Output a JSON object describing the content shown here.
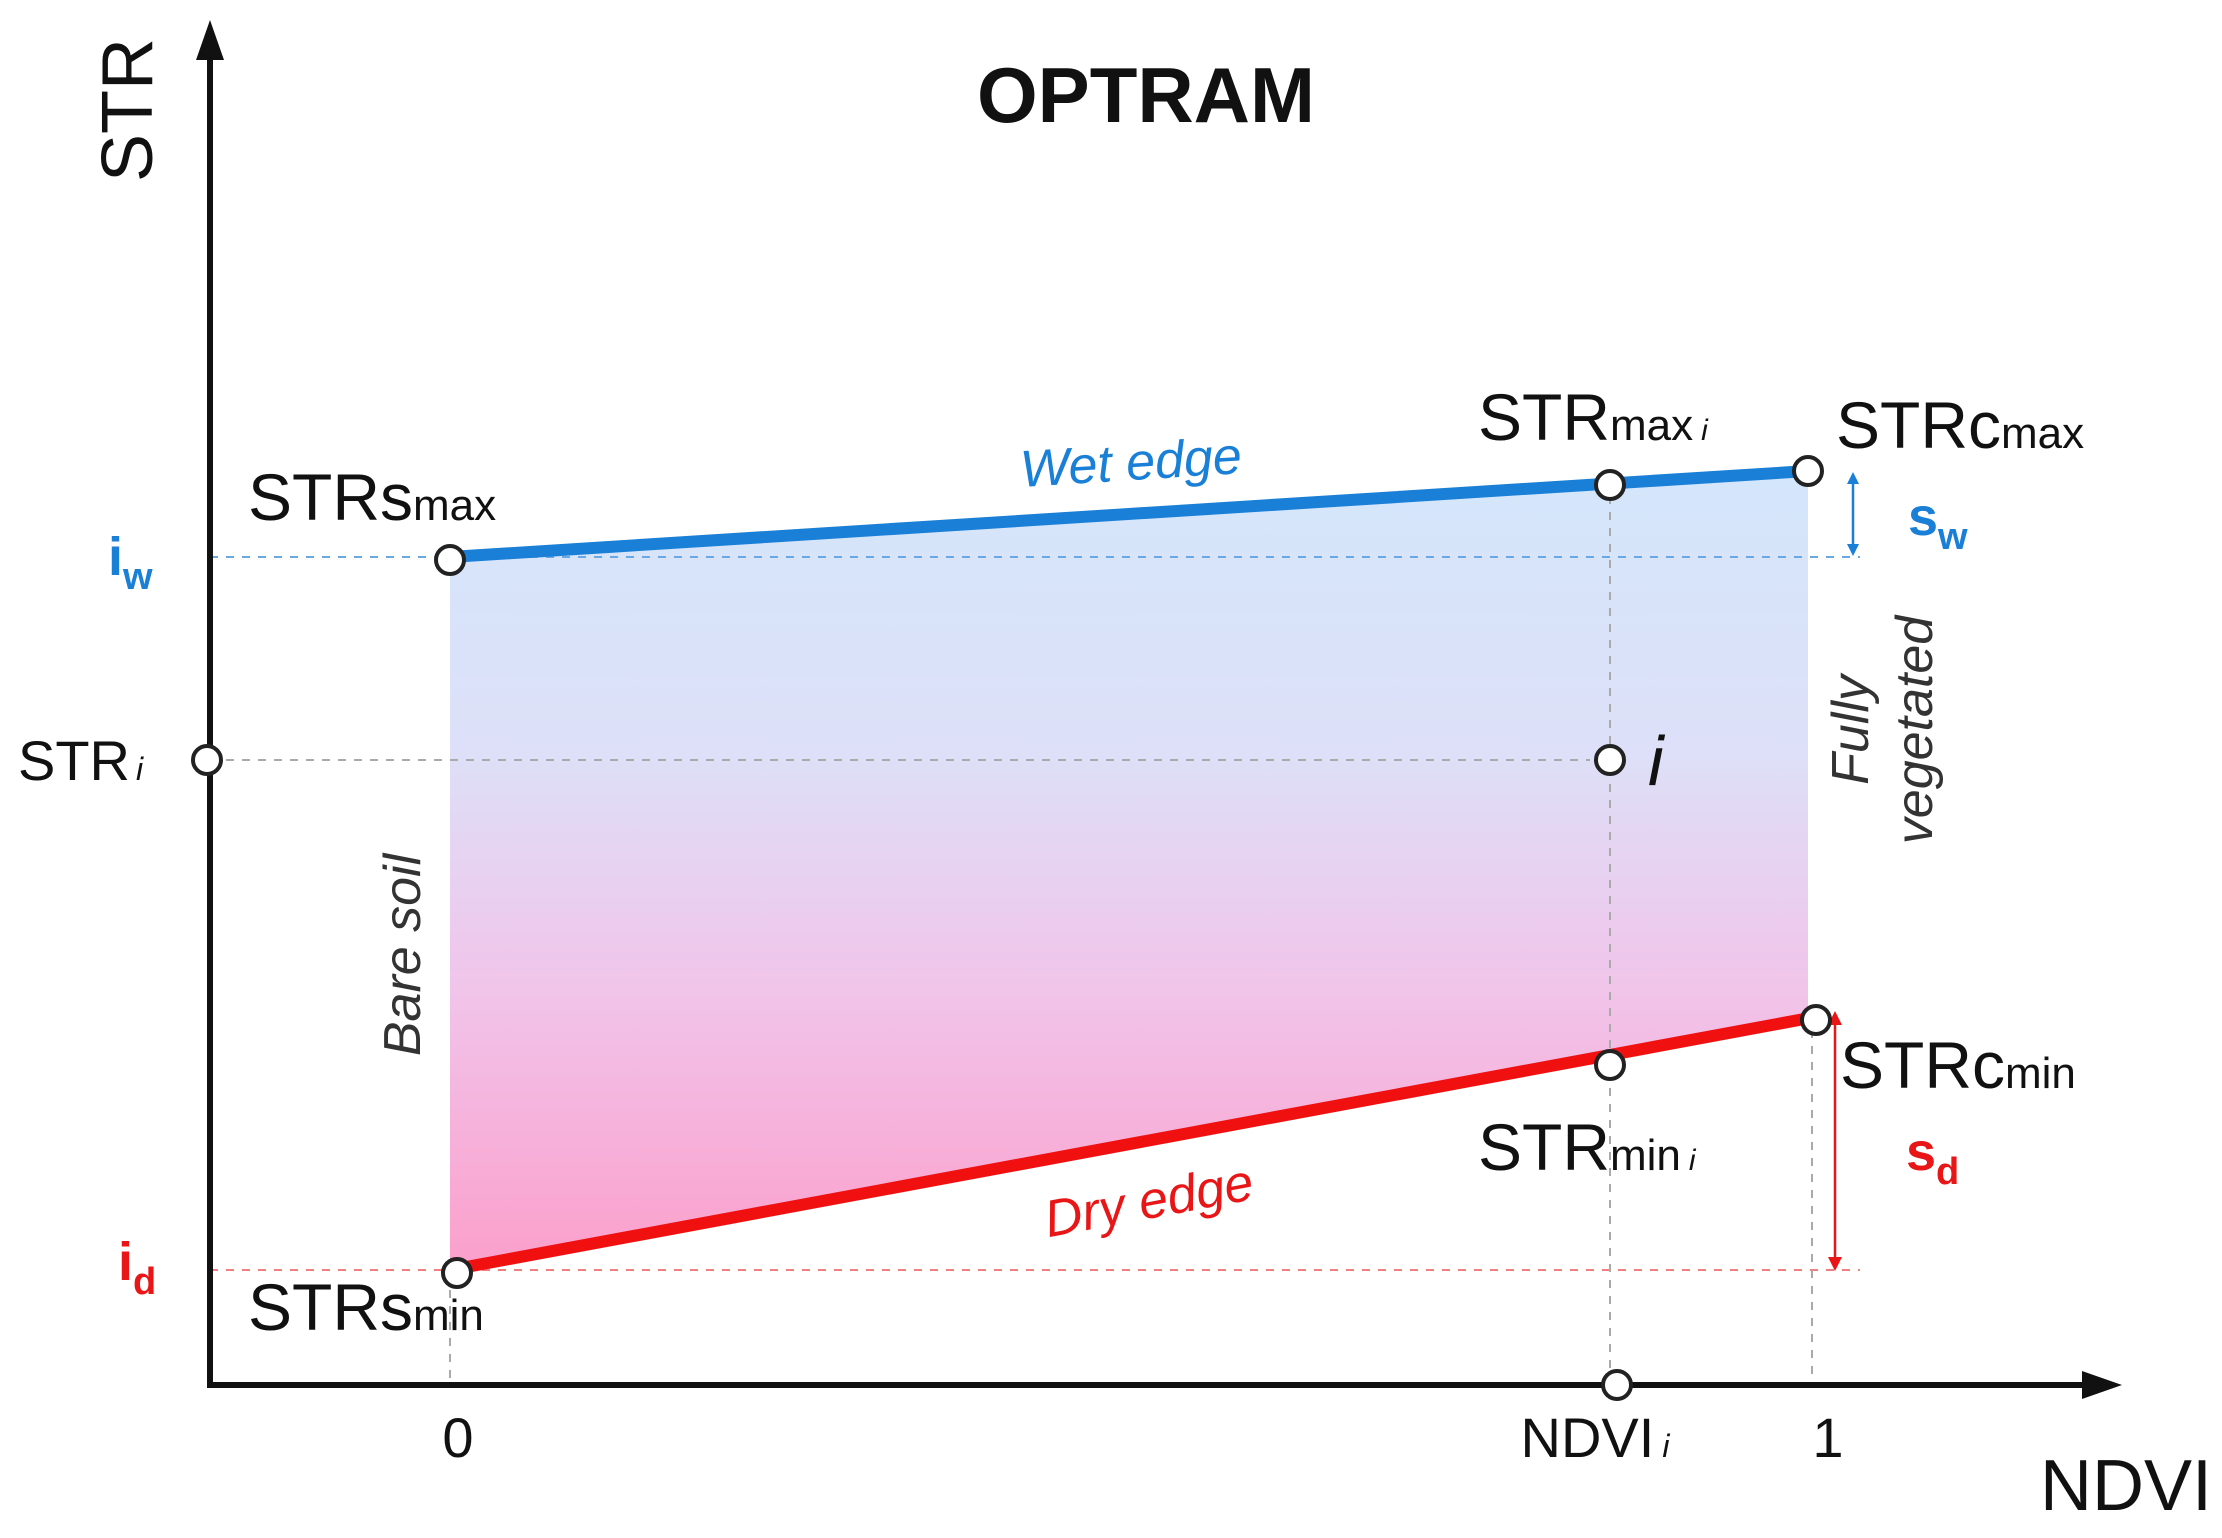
{
  "title": "OPTRAM",
  "axes": {
    "y_label": "STR",
    "x_label": "NDVI",
    "x_tick_0": "0",
    "x_tick_1": "1",
    "x_tick_ndvi_main": "NDVI",
    "x_tick_ndvi_sub": "i"
  },
  "edges": {
    "wet": "Wet edge",
    "dry": "Dry edge",
    "bare_soil": "Bare soil",
    "fully_line1": "Fully",
    "fully_line2": "vegetated"
  },
  "points": {
    "strs_max_main": "STRs",
    "strs_max_sub": "max",
    "strs_min_main": "STRs",
    "strs_min_sub": "min",
    "strc_max_main": "STRc",
    "strc_max_sub": "max",
    "strc_min_main": "STRc",
    "strc_min_sub": "min",
    "str_maxi_main": "STR",
    "str_maxi_sub": "max",
    "str_maxi_idx": "i",
    "str_mini_main": "STR",
    "str_mini_sub": "min",
    "str_mini_idx": "i",
    "str_i_main": "STR",
    "str_i_idx": "i",
    "pixel_i": "i"
  },
  "params": {
    "iw_main": "i",
    "iw_sub": "w",
    "id_main": "i",
    "id_sub": "d",
    "sw_main": "s",
    "sw_sub": "w",
    "sd_main": "s",
    "sd_sub": "d"
  },
  "colors": {
    "wet": "#1a7fd6",
    "dry": "#f01010",
    "param_blue": "#1a7fd6",
    "param_red": "#e81616",
    "fill_top": "#d4e6fb",
    "fill_bottom": "#fb9fcb",
    "axis": "#111111",
    "guide": "#aaaaaa"
  }
}
